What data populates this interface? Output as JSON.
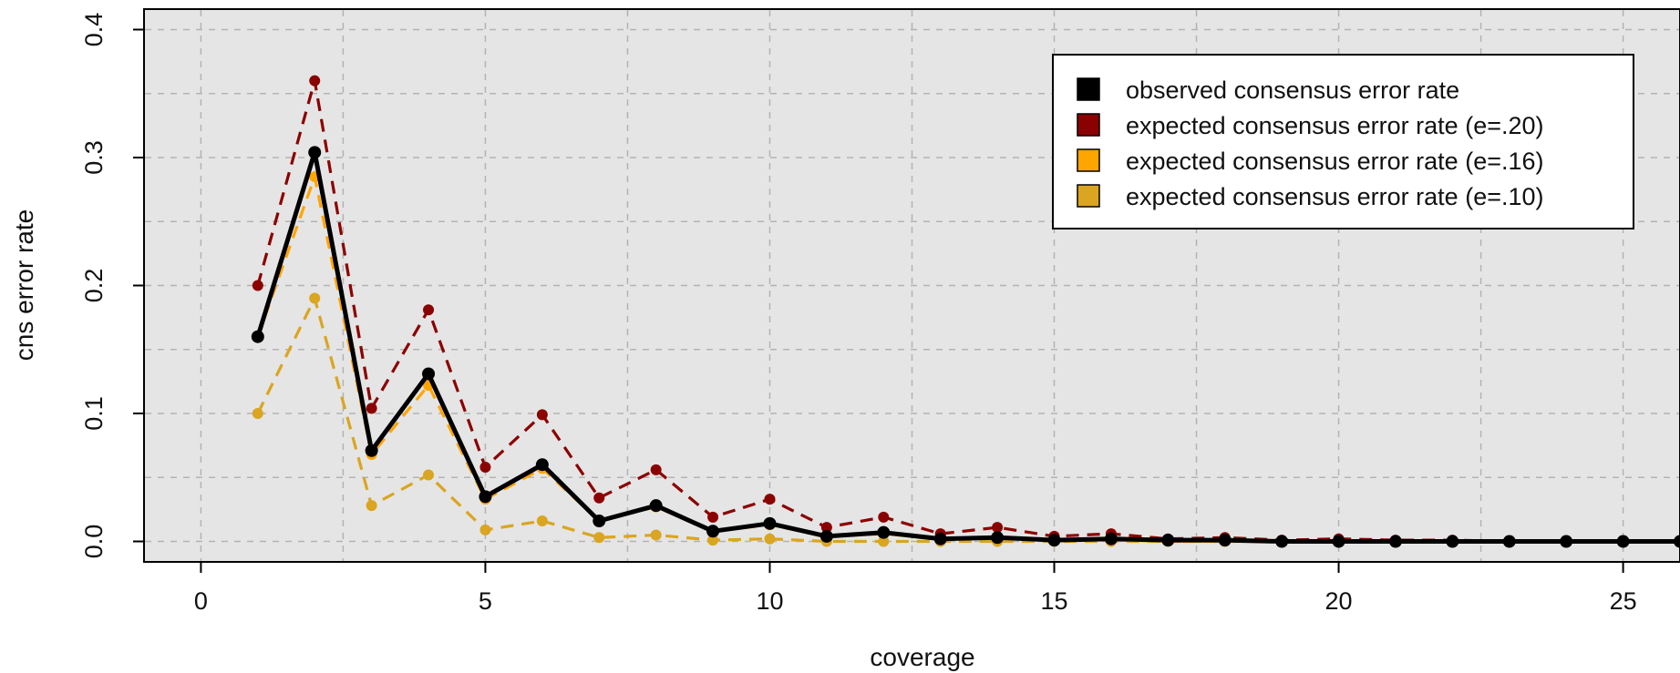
{
  "chart_data": {
    "type": "line",
    "title": "",
    "xlabel": "coverage",
    "ylabel": "cns error rate",
    "xlim": [
      -1,
      26
    ],
    "ylim": [
      -0.016,
      0.416
    ],
    "x_ticks": [
      0,
      5,
      10,
      15,
      20,
      25
    ],
    "x_tick_labels": [
      "0",
      "5",
      "10",
      "15",
      "20",
      "25"
    ],
    "y_ticks": [
      0.0,
      0.1,
      0.2,
      0.3,
      0.4
    ],
    "y_tick_labels": [
      "0.0",
      "0.1",
      "0.2",
      "0.3",
      "0.4"
    ],
    "grid": true,
    "legend_position": "top-right",
    "background_color": "#e5e5e5",
    "x": [
      1,
      2,
      3,
      4,
      5,
      6,
      7,
      8,
      9,
      10,
      11,
      12,
      13,
      14,
      15,
      16,
      17,
      18,
      19,
      20,
      21,
      22,
      23,
      24,
      25,
      26
    ],
    "series": [
      {
        "name": "expected consensus error rate (e=.20)",
        "color": "#8b0000",
        "style": "dashed",
        "values": [
          0.2,
          0.36,
          0.104,
          0.181,
          0.058,
          0.099,
          0.034,
          0.056,
          0.019,
          0.033,
          0.011,
          0.019,
          0.006,
          0.011,
          0.004,
          0.006,
          0.002,
          0.003,
          0.001,
          0.002,
          0.001,
          0.001,
          0.0,
          0.0,
          0.0,
          0.0
        ]
      },
      {
        "name": "expected consensus error rate (e=.16)",
        "color": "#ffa500",
        "style": "dashed",
        "values": [
          0.16,
          0.285,
          0.068,
          0.122,
          0.033,
          0.057,
          0.016,
          0.027,
          0.008,
          0.013,
          0.004,
          0.006,
          0.002,
          0.003,
          0.001,
          0.001,
          0.0,
          0.0,
          0.0,
          0.0,
          0.0,
          0.0,
          0.0,
          0.0,
          0.0,
          0.0
        ]
      },
      {
        "name": "expected consensus error rate (e=.10)",
        "color": "#daa520",
        "style": "dashed",
        "values": [
          0.1,
          0.19,
          0.028,
          0.052,
          0.009,
          0.016,
          0.003,
          0.005,
          0.001,
          0.002,
          0.0,
          0.0,
          0.0,
          0.0,
          0.0,
          0.0,
          0.0,
          0.0,
          0.0,
          0.0,
          0.0,
          0.0,
          0.0,
          0.0,
          0.0,
          0.0
        ]
      },
      {
        "name": "observed consensus error rate",
        "color": "#000000",
        "style": "solid",
        "values": [
          0.16,
          0.304,
          0.071,
          0.131,
          0.035,
          0.06,
          0.016,
          0.028,
          0.008,
          0.014,
          0.004,
          0.007,
          0.002,
          0.003,
          0.001,
          0.002,
          0.001,
          0.001,
          0.0,
          0.0,
          0.0,
          0.0,
          0.0,
          0.0,
          0.0,
          0.0
        ]
      }
    ],
    "legend": [
      {
        "label": "observed consensus error rate",
        "color": "#000000"
      },
      {
        "label": "expected consensus error rate (e=.20)",
        "color": "#8b0000"
      },
      {
        "label": "expected consensus error rate (e=.16)",
        "color": "#ffa500"
      },
      {
        "label": "expected consensus error rate (e=.10)",
        "color": "#daa520"
      }
    ]
  }
}
